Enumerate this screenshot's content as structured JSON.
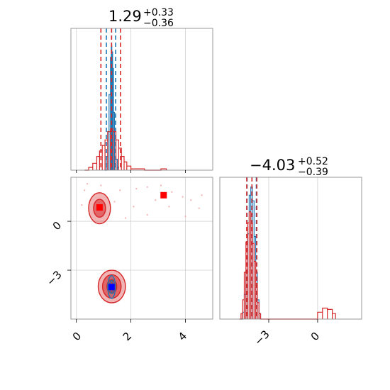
{
  "chart_data": {
    "type": "corner",
    "colors": {
      "series_a": "#1f77b4",
      "series_b": "#d62728",
      "grid": "#d0d0d0",
      "frame": "#808080",
      "marker_a": "#0000ff",
      "marker_b": "#ff0000"
    },
    "params": [
      {
        "median": "1.29",
        "plus": "+0.33",
        "minus": "−0.36"
      },
      {
        "median": "−4.03",
        "plus": "+0.52",
        "minus": "−0.39"
      }
    ],
    "axes": {
      "p1": {
        "range": [
          -0.2,
          5.0
        ],
        "ticks": [
          0,
          2,
          4
        ],
        "ticklabels": [
          "0",
          "2",
          "4"
        ]
      },
      "p2": {
        "range": [
          -6.0,
          2.7
        ],
        "ticks": [
          -3,
          0
        ],
        "ticklabels": [
          "−3",
          "0"
        ]
      }
    },
    "series": [
      {
        "color": "#1f77b4",
        "quantiles_p1": [
          1.1,
          1.29,
          1.44
        ],
        "quantiles_p2": [
          -4.33,
          -4.03,
          -3.76
        ],
        "marginal_p1": [
          [
            1.05,
            0.0
          ],
          [
            1.1,
            0.1
          ],
          [
            1.15,
            0.28
          ],
          [
            1.2,
            0.55
          ],
          [
            1.25,
            0.82
          ],
          [
            1.28,
            0.9
          ],
          [
            1.3,
            0.86
          ],
          [
            1.33,
            0.74
          ],
          [
            1.36,
            0.42
          ],
          [
            1.4,
            0.22
          ],
          [
            1.45,
            0.08
          ],
          [
            1.5,
            0.02
          ],
          [
            1.55,
            0.0
          ]
        ],
        "marginal_p2": [
          [
            -4.7,
            0.0
          ],
          [
            -4.6,
            0.05
          ],
          [
            -4.5,
            0.18
          ],
          [
            -4.4,
            0.35
          ],
          [
            -4.3,
            0.62
          ],
          [
            -4.2,
            0.9
          ],
          [
            -4.1,
            0.96
          ],
          [
            -4.0,
            0.86
          ],
          [
            -3.9,
            0.6
          ],
          [
            -3.8,
            0.34
          ],
          [
            -3.7,
            0.14
          ],
          [
            -3.6,
            0.04
          ],
          [
            -3.5,
            0.0
          ]
        ],
        "truth": [
          1.29,
          -4.03
        ]
      },
      {
        "color": "#d62728",
        "quantiles_p1": [
          0.9,
          1.29,
          1.62
        ],
        "quantiles_p2": [
          -4.35,
          -4.03,
          -3.73
        ],
        "marginal_p1": [
          [
            0.3,
            0.0
          ],
          [
            0.45,
            0.02
          ],
          [
            0.6,
            0.05
          ],
          [
            0.75,
            0.1
          ],
          [
            0.85,
            0.14
          ],
          [
            0.95,
            0.18
          ],
          [
            1.05,
            0.22
          ],
          [
            1.15,
            0.28
          ],
          [
            1.25,
            0.3
          ],
          [
            1.35,
            0.28
          ],
          [
            1.45,
            0.22
          ],
          [
            1.55,
            0.16
          ],
          [
            1.65,
            0.1
          ],
          [
            1.75,
            0.06
          ],
          [
            1.85,
            0.03
          ],
          [
            2.0,
            0.01
          ],
          [
            2.5,
            0.0
          ],
          [
            3.1,
            0.01
          ],
          [
            3.3,
            0.0
          ]
        ],
        "marginal_p2": [
          [
            -4.8,
            0.0
          ],
          [
            -4.7,
            0.04
          ],
          [
            -4.6,
            0.14
          ],
          [
            -4.5,
            0.34
          ],
          [
            -4.4,
            0.56
          ],
          [
            -4.3,
            0.7
          ],
          [
            -4.2,
            0.78
          ],
          [
            -4.1,
            0.7
          ],
          [
            -4.0,
            0.55
          ],
          [
            -3.9,
            0.42
          ],
          [
            -3.8,
            0.26
          ],
          [
            -3.7,
            0.12
          ],
          [
            -3.6,
            0.04
          ],
          [
            -3.5,
            0.0
          ],
          [
            -0.2,
            0.0
          ],
          [
            0.0,
            0.05
          ],
          [
            0.3,
            0.08
          ],
          [
            0.6,
            0.07
          ],
          [
            0.9,
            0.04
          ],
          [
            1.1,
            0.0
          ]
        ],
        "truth": [
          3.2,
          1.6
        ]
      }
    ],
    "contours": [
      {
        "series": 1,
        "center": [
          1.3,
          -4.0
        ],
        "radii": [
          [
            0.5,
            1.0
          ],
          [
            0.34,
            0.72
          ],
          [
            0.18,
            0.42
          ]
        ]
      },
      {
        "series": 1,
        "center": [
          0.85,
          0.8
        ],
        "radii": [
          [
            0.4,
            0.95
          ],
          [
            0.22,
            0.55
          ]
        ]
      },
      {
        "series": 0,
        "center": [
          1.29,
          -4.03
        ],
        "radii": [
          [
            0.14,
            0.7
          ],
          [
            0.08,
            0.4
          ]
        ]
      }
    ],
    "markers": [
      {
        "series": 1,
        "p1": 0.85,
        "p2": 0.85,
        "color": "#ff0000"
      },
      {
        "series": 1,
        "p1": 3.2,
        "p2": 1.6,
        "color": "#ff0000"
      },
      {
        "series": 0,
        "p1": 1.29,
        "p2": -4.03,
        "color": "#0000ff"
      }
    ],
    "scatter": [
      [
        0.4,
        2.3
      ],
      [
        0.9,
        2.2
      ],
      [
        1.6,
        1.9
      ],
      [
        2.2,
        2.0
      ],
      [
        2.6,
        2.1
      ],
      [
        3.1,
        2.2
      ],
      [
        3.5,
        1.8
      ],
      [
        3.9,
        1.5
      ],
      [
        4.2,
        1.3
      ],
      [
        4.6,
        1.6
      ],
      [
        0.2,
        1.0
      ],
      [
        1.8,
        0.2
      ],
      [
        2.1,
        0.9
      ],
      [
        2.6,
        0.4
      ],
      [
        3.4,
        0.9
      ],
      [
        4.0,
        0.3
      ],
      [
        4.5,
        0.8
      ],
      [
        1.4,
        1.2
      ],
      [
        0.3,
        1.9
      ],
      [
        2.9,
        1.3
      ]
    ]
  }
}
